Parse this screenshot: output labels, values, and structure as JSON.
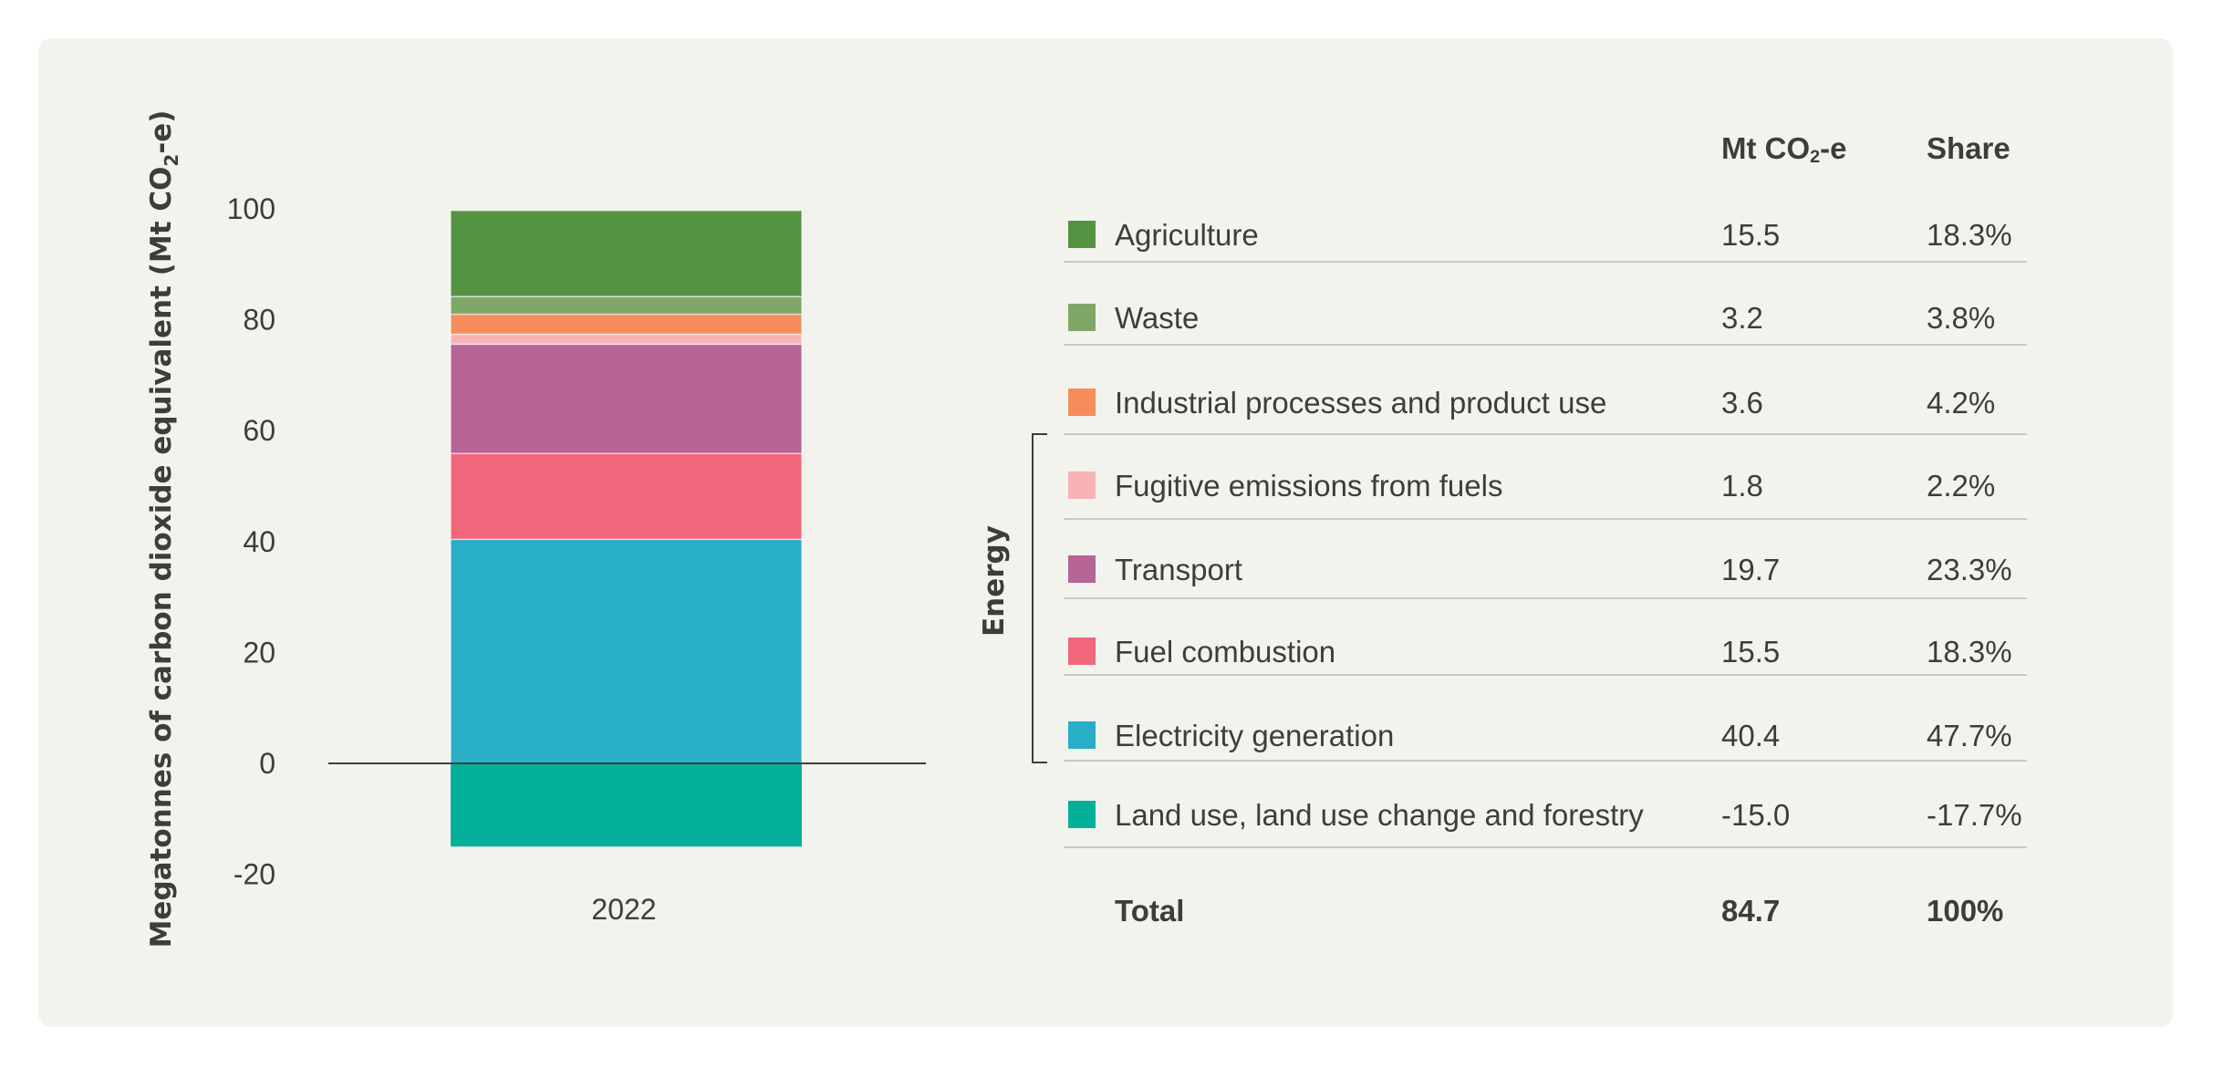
{
  "chart_data": {
    "type": "bar",
    "stacked": true,
    "categories": [
      "2022"
    ],
    "ylabel_prefix": "Megatonnes of carbon dioxide equivalent (Mt CO",
    "ylabel_sub": "2",
    "ylabel_suffix": "-e)",
    "ylim": [
      -20,
      100
    ],
    "yticks": [
      100,
      80,
      60,
      40,
      20,
      0,
      -20
    ],
    "grid": false,
    "legend_position": "right (table)",
    "series": [
      {
        "name": "Electricity generation",
        "values": [
          40.4
        ],
        "color": "#29aec8"
      },
      {
        "name": "Fuel combustion",
        "values": [
          15.5
        ],
        "color": "#f0677c"
      },
      {
        "name": "Transport",
        "values": [
          19.7
        ],
        "color": "#b76497"
      },
      {
        "name": "Fugitive emissions from fuels",
        "values": [
          1.8
        ],
        "color": "#f8b3b6"
      },
      {
        "name": "Industrial processes and product use",
        "values": [
          3.6
        ],
        "color": "#f58c5a"
      },
      {
        "name": "Waste",
        "values": [
          3.2
        ],
        "color": "#80a767"
      },
      {
        "name": "Agriculture",
        "values": [
          15.5
        ],
        "color": "#559343"
      },
      {
        "name": "Land use, land use change and forestry",
        "values": [
          -15.0
        ],
        "color": "#05b09a"
      }
    ]
  },
  "table": {
    "header_value_prefix": "Mt CO",
    "header_value_sub": "2",
    "header_value_suffix": "-e",
    "header_share": "Share",
    "group_label": "Energy",
    "rows": [
      {
        "label": "Agriculture",
        "value": "15.5",
        "share": "18.3%",
        "color": "#559343"
      },
      {
        "label": "Waste",
        "value": "3.2",
        "share": "3.8%",
        "color": "#80a767"
      },
      {
        "label": "Industrial processes and product use",
        "value": "3.6",
        "share": "4.2%",
        "color": "#f58c5a"
      },
      {
        "label": "Fugitive emissions from fuels",
        "value": "1.8",
        "share": "2.2%",
        "color": "#f8b3b6"
      },
      {
        "label": "Transport",
        "value": "19.7",
        "share": "23.3%",
        "color": "#b76497"
      },
      {
        "label": "Fuel combustion",
        "value": "15.5",
        "share": "18.3%",
        "color": "#f0677c"
      },
      {
        "label": "Electricity generation",
        "value": "40.4",
        "share": "47.7%",
        "color": "#29aec8"
      },
      {
        "label": "Land use, land use change and forestry",
        "value": "-15.0",
        "share": "-17.7%",
        "color": "#05b09a"
      }
    ],
    "total": {
      "label": "Total",
      "value": "84.7",
      "share": "100%"
    }
  }
}
